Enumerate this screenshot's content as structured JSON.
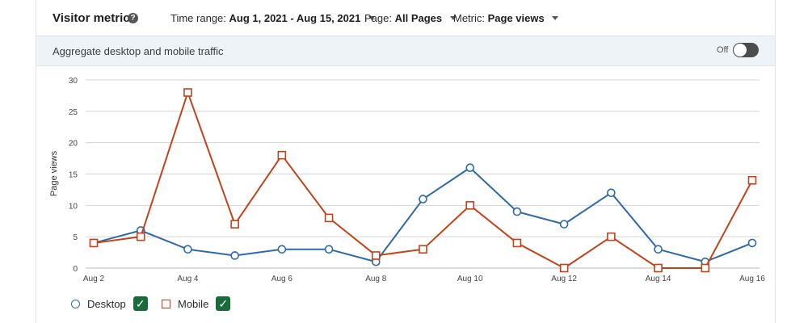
{
  "header": {
    "title": "Visitor metrics",
    "help_icon": "help-icon",
    "time_range_label": "Time range:",
    "time_range_value": "Aug 1, 2021 - Aug 15, 2021",
    "page_label": "Page:",
    "page_value": "All Pages",
    "metric_label": "Metric:",
    "metric_value": "Page views"
  },
  "aggregate": {
    "label": "Aggregate desktop and mobile traffic",
    "toggle_state": "Off"
  },
  "legend": {
    "desktop_label": "Desktop",
    "mobile_label": "Mobile",
    "check_glyph": "✓"
  },
  "colors": {
    "desktop": "#2e6aa8",
    "mobile": "#c0441b",
    "grid": "#d5d5d5",
    "checkbox": "#1a6b3a"
  },
  "chart_data": {
    "type": "line",
    "ylabel": "Page views",
    "xlabel": "",
    "ylim": [
      0,
      30
    ],
    "yticks": [
      0,
      5,
      10,
      15,
      20,
      25,
      30
    ],
    "x": [
      2,
      3,
      4,
      5,
      6,
      7,
      8,
      9,
      10,
      11,
      12,
      13,
      14,
      15,
      16
    ],
    "xticks": [
      {
        "x": 2,
        "label": "Aug 2"
      },
      {
        "x": 4,
        "label": "Aug 4"
      },
      {
        "x": 6,
        "label": "Aug 6"
      },
      {
        "x": 8,
        "label": "Aug 8"
      },
      {
        "x": 10,
        "label": "Aug 10"
      },
      {
        "x": 12,
        "label": "Aug 12"
      },
      {
        "x": 14,
        "label": "Aug 14"
      },
      {
        "x": 16,
        "label": "Aug 16"
      }
    ],
    "grid": true,
    "legend_position": "bottom-left",
    "series": [
      {
        "name": "Desktop",
        "marker": "circle",
        "values": [
          4,
          6,
          3,
          2,
          3,
          3,
          1,
          11,
          16,
          9,
          7,
          12,
          3,
          1,
          4
        ]
      },
      {
        "name": "Mobile",
        "marker": "square",
        "values": [
          4,
          5,
          28,
          7,
          18,
          8,
          2,
          3,
          10,
          4,
          0,
          5,
          0,
          0,
          14
        ]
      }
    ]
  }
}
